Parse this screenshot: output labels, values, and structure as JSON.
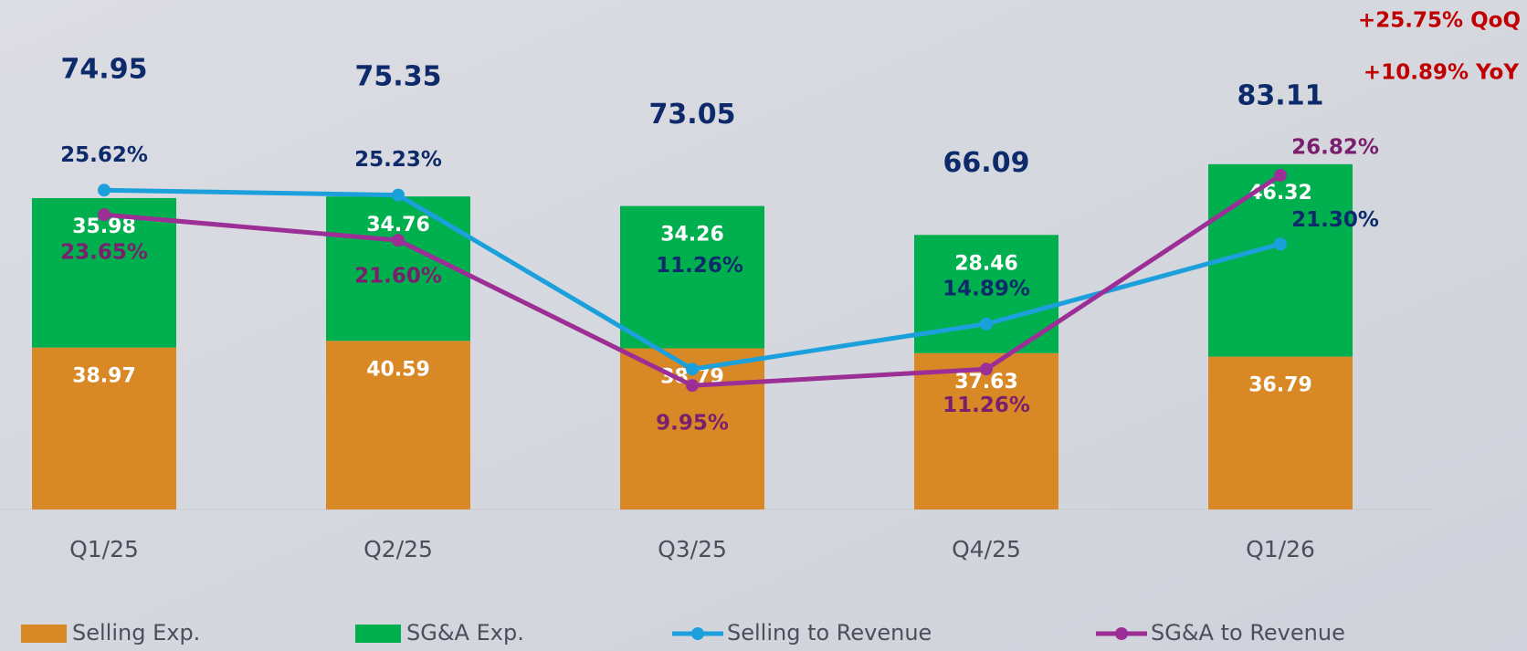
{
  "chart_data": {
    "type": "bar",
    "stacked": true,
    "categories": [
      "Q1/25",
      "Q2/25",
      "Q3/25",
      "Q4/25",
      "Q1/26"
    ],
    "ylim": [
      0,
      120
    ],
    "y2lim": [
      0,
      40
    ],
    "series": [
      {
        "name": "Selling Exp.",
        "type": "bar",
        "color": "#d98826",
        "values": [
          38.97,
          40.59,
          38.79,
          37.63,
          36.79
        ]
      },
      {
        "name": "SG&A Exp.",
        "type": "bar",
        "color": "#00b04f",
        "values": [
          35.98,
          34.76,
          34.26,
          28.46,
          46.32
        ]
      },
      {
        "name": "Selling to Revenue",
        "type": "line",
        "axis": "y2",
        "color": "#1ca0dc",
        "label_color": "#0d2a6b",
        "values": [
          25.62,
          25.23,
          11.26,
          14.89,
          21.3
        ],
        "value_labels": [
          "25.62%",
          "25.23%",
          "11.26%",
          "14.89%",
          "21.30%"
        ]
      },
      {
        "name": "SG&A to Revenue",
        "type": "line",
        "axis": "y2",
        "color": "#9c2f96",
        "label_color": "#7a1f6e",
        "values": [
          23.65,
          21.6,
          9.95,
          11.26,
          26.82
        ],
        "value_labels": [
          "23.65%",
          "21.60%",
          "9.95%",
          "11.26%",
          "26.82%"
        ]
      }
    ],
    "totals": [
      74.95,
      75.35,
      73.05,
      66.09,
      83.11
    ],
    "annotations": [
      "+25.75% QoQ",
      "+10.89% YoY"
    ],
    "legend": "bottom"
  }
}
